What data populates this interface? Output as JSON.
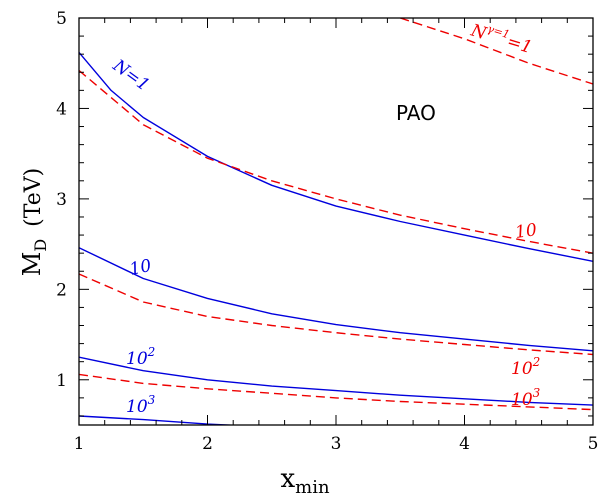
{
  "chart_data": {
    "type": "line",
    "annotation": "PAO",
    "xlabel": {
      "main": "x",
      "sub": "min"
    },
    "ylabel": {
      "main": "M",
      "sub": "D",
      "unit": "(TeV)"
    },
    "xlim": [
      1,
      5
    ],
    "ylim": [
      0.5,
      5
    ],
    "xticks": [
      "1",
      "2",
      "3",
      "4",
      "5"
    ],
    "yticks": [
      "1",
      "2",
      "3",
      "4",
      "5"
    ],
    "colors": {
      "solid": "#0000dd",
      "dashed": "#ee0000"
    },
    "series": [
      {
        "label": {
          "base": "N=1",
          "sup": ""
        },
        "style": "solid",
        "color": "#0000dd",
        "x": [
          1.0,
          1.25,
          1.5,
          2.0,
          2.5,
          3.0,
          3.5,
          4.0,
          4.5,
          5.0
        ],
        "y": [
          4.62,
          4.2,
          3.9,
          3.47,
          3.15,
          2.92,
          2.75,
          2.6,
          2.45,
          2.31
        ]
      },
      {
        "label": {
          "base": "10",
          "sup": ""
        },
        "style": "solid",
        "color": "#0000dd",
        "x": [
          1.0,
          1.5,
          2.0,
          2.5,
          3.0,
          3.5,
          4.0,
          4.5,
          5.0
        ],
        "y": [
          2.46,
          2.12,
          1.9,
          1.73,
          1.61,
          1.52,
          1.45,
          1.38,
          1.32
        ]
      },
      {
        "label": {
          "base": "10",
          "sup": "2"
        },
        "style": "solid",
        "color": "#0000dd",
        "x": [
          1.0,
          1.5,
          2.0,
          2.5,
          3.0,
          3.5,
          4.0,
          4.5,
          5.0
        ],
        "y": [
          1.25,
          1.1,
          1.0,
          0.93,
          0.88,
          0.83,
          0.79,
          0.75,
          0.72
        ]
      },
      {
        "label": {
          "base": "10",
          "sup": "3"
        },
        "style": "solid",
        "color": "#0000dd",
        "x": [
          1.0,
          1.5,
          2.0,
          2.3
        ],
        "y": [
          0.6,
          0.56,
          0.51,
          0.49
        ]
      },
      {
        "label": {
          "base": "N",
          "sup": "γ=1",
          "suffix": "=1"
        },
        "style": "dashed",
        "color": "#ee0000",
        "x": [
          3.5,
          4.0,
          4.5,
          5.0
        ],
        "y": [
          5.0,
          4.77,
          4.5,
          4.27
        ]
      },
      {
        "label": {
          "base": "",
          "sup": ""
        },
        "style": "dashed",
        "color": "#ee0000",
        "x": [
          1.0,
          1.5,
          2.0,
          2.5,
          3.0,
          3.5,
          4.0,
          4.5,
          5.0
        ],
        "y": [
          4.42,
          3.82,
          3.45,
          3.2,
          3.0,
          2.82,
          2.67,
          2.53,
          2.4
        ]
      },
      {
        "label": {
          "base": "10",
          "sup": ""
        },
        "style": "dashed",
        "color": "#ee0000",
        "x": [
          1.0,
          1.5,
          2.0,
          2.5,
          3.0,
          3.5,
          4.0,
          4.5,
          5.0
        ],
        "y": [
          2.17,
          1.86,
          1.7,
          1.6,
          1.52,
          1.45,
          1.39,
          1.33,
          1.28
        ]
      },
      {
        "label": {
          "base": "10",
          "sup": "2"
        },
        "style": "dashed",
        "color": "#ee0000",
        "x": [
          1.0,
          1.5,
          2.0,
          2.5,
          3.0,
          3.5,
          4.0,
          4.5,
          5.0
        ],
        "y": [
          1.06,
          0.96,
          0.9,
          0.85,
          0.8,
          0.76,
          0.73,
          0.7,
          0.67
        ]
      },
      {
        "label": {
          "base": "10",
          "sup": "3"
        },
        "style": "dashed",
        "color": "#ee0000",
        "x": [],
        "y": []
      }
    ]
  }
}
